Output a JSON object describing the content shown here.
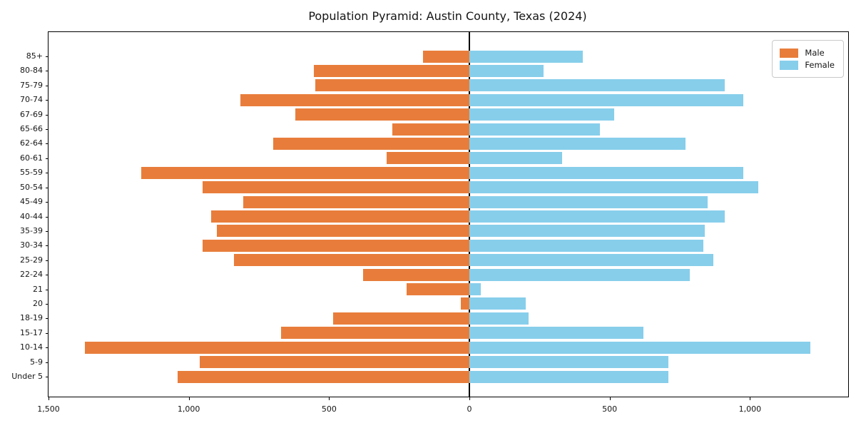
{
  "chart_data": {
    "type": "bar",
    "variant": "population-pyramid",
    "orientation": "horizontal",
    "title": "Population Pyramid: Austin County, Texas (2024)",
    "categories": [
      "85+",
      "80-84",
      "75-79",
      "70-74",
      "67-69",
      "65-66",
      "62-64",
      "60-61",
      "55-59",
      "50-54",
      "45-49",
      "40-44",
      "35-39",
      "30-34",
      "25-29",
      "22-24",
      "21",
      "20",
      "18-19",
      "15-17",
      "10-14",
      "5-9",
      "Under 5"
    ],
    "series": [
      {
        "name": "Male",
        "side": "left",
        "color": "#e87d3b",
        "values": [
          165,
          555,
          550,
          815,
          620,
          275,
          700,
          295,
          1170,
          950,
          805,
          920,
          900,
          950,
          840,
          380,
          225,
          30,
          485,
          670,
          1370,
          960,
          1040
        ]
      },
      {
        "name": "Female",
        "side": "right",
        "color": "#87ceeb",
        "values": [
          405,
          265,
          910,
          975,
          515,
          465,
          770,
          330,
          975,
          1030,
          850,
          910,
          840,
          835,
          870,
          785,
          40,
          200,
          210,
          620,
          1215,
          710,
          710
        ]
      }
    ],
    "xlim": [
      -1500,
      1350
    ],
    "xticks": [
      {
        "value": -1500,
        "label": "1,500"
      },
      {
        "value": -1000,
        "label": "1,000"
      },
      {
        "value": -500,
        "label": "500"
      },
      {
        "value": 0,
        "label": "0"
      },
      {
        "value": 500,
        "label": "500"
      },
      {
        "value": 1000,
        "label": "1,000"
      }
    ],
    "xlabel": "",
    "ylabel": "",
    "grid": false,
    "legend_position": "upper right",
    "zero_axis_color": "#000000"
  }
}
